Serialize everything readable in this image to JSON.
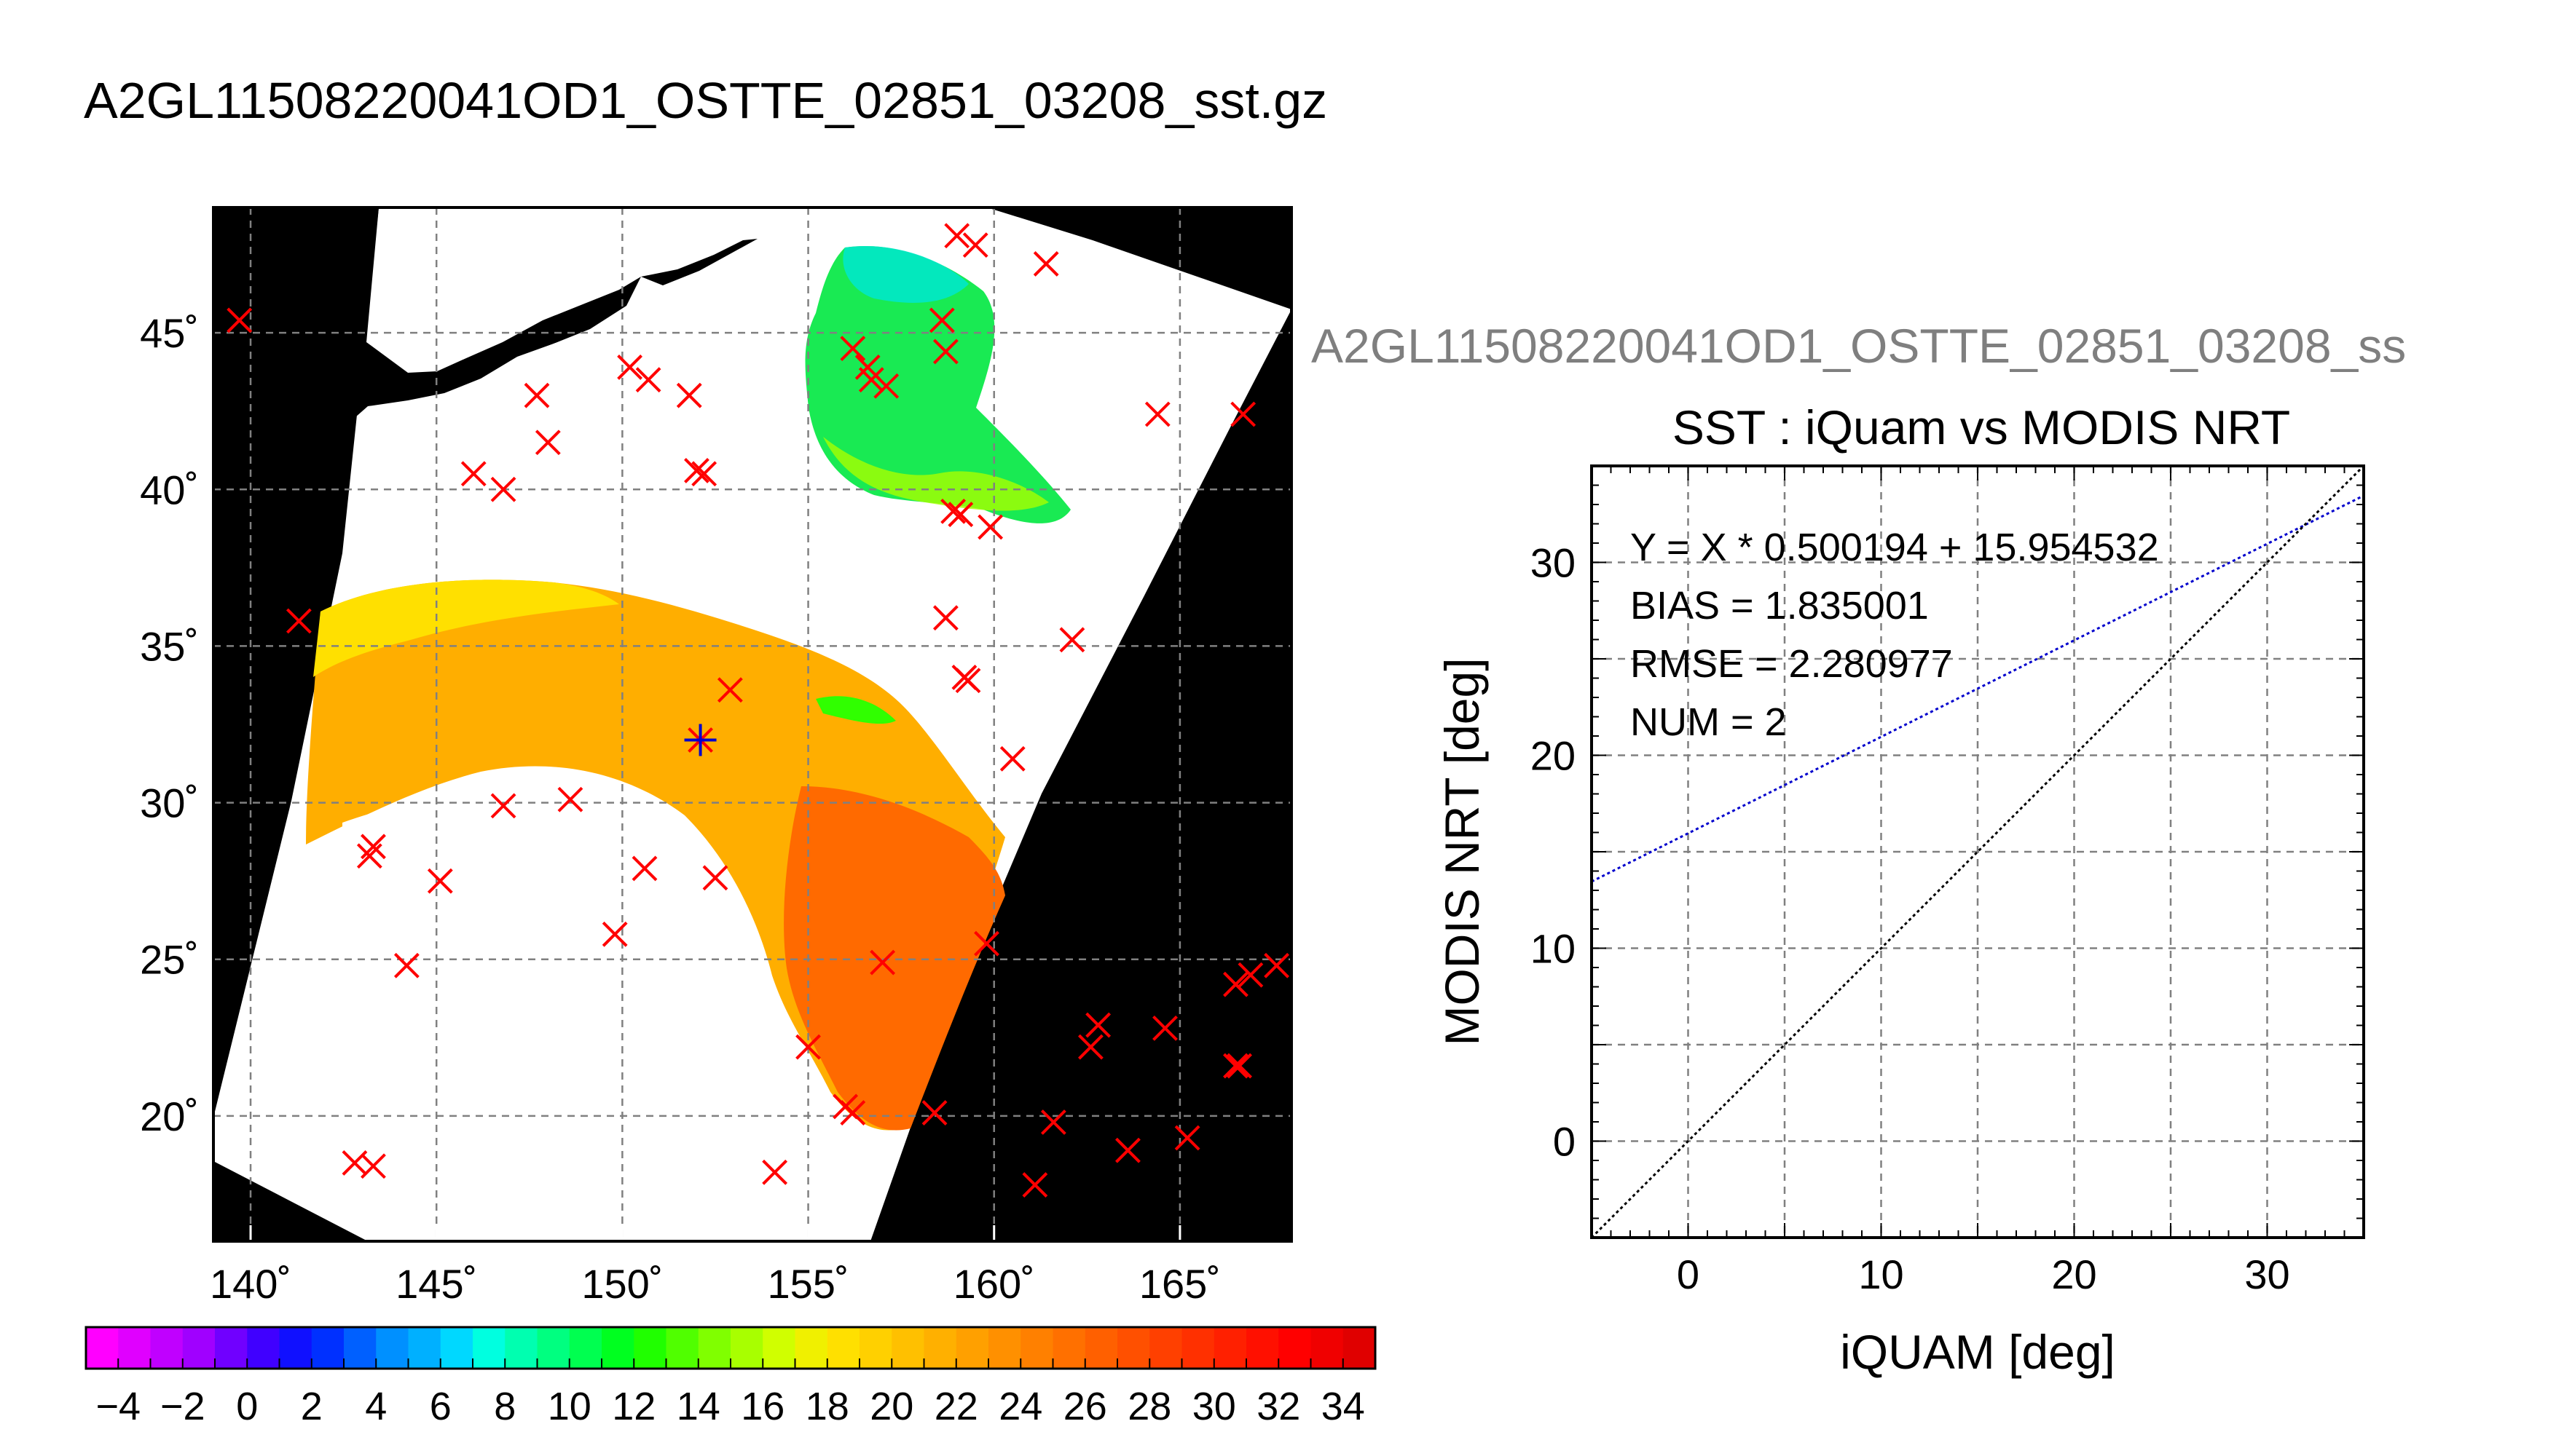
{
  "title": "A2GL11508220041OD1_OSTTE_02851_03208_sst.gz",
  "chart_data": [
    {
      "type": "map",
      "xlim": [
        139,
        168
      ],
      "ylim": [
        16,
        49
      ],
      "x_ticks": [
        140,
        145,
        150,
        155,
        160,
        165
      ],
      "y_ticks": [
        20,
        25,
        30,
        35,
        40,
        45
      ],
      "x_tick_labels": [
        "140˚",
        "145˚",
        "150˚",
        "155˚",
        "160˚",
        "165˚"
      ],
      "y_tick_labels": [
        "20˚",
        "25˚",
        "30˚",
        "35˚",
        "40˚",
        "45˚"
      ],
      "grid": true,
      "markers": [
        [
          139.7,
          45.4
        ],
        [
          141.3,
          35.8
        ],
        [
          142.8,
          18.5
        ],
        [
          143.3,
          18.4
        ],
        [
          143.2,
          28.3
        ],
        [
          143.3,
          28.6
        ],
        [
          144.2,
          24.8
        ],
        [
          145.1,
          27.5
        ],
        [
          146.0,
          40.5
        ],
        [
          146.8,
          40.0
        ],
        [
          146.8,
          29.9
        ],
        [
          147.7,
          43.0
        ],
        [
          148.0,
          41.5
        ],
        [
          148.6,
          30.1
        ],
        [
          149.8,
          25.8
        ],
        [
          150.2,
          43.9
        ],
        [
          150.6,
          27.9
        ],
        [
          150.7,
          43.5
        ],
        [
          152.0,
          40.6
        ],
        [
          152.2,
          40.5
        ],
        [
          151.8,
          43.0
        ],
        [
          152.5,
          27.6
        ],
        [
          152.9,
          33.6
        ],
        [
          155.0,
          22.2
        ],
        [
          154.1,
          18.2
        ],
        [
          156.0,
          20.3
        ],
        [
          156.2,
          20.1
        ],
        [
          157.0,
          24.9
        ],
        [
          156.2,
          44.5
        ],
        [
          156.6,
          43.9
        ],
        [
          156.7,
          43.5
        ],
        [
          157.1,
          43.3
        ],
        [
          158.4,
          20.1
        ],
        [
          158.6,
          45.4
        ],
        [
          158.7,
          44.4
        ],
        [
          158.7,
          35.9
        ],
        [
          158.9,
          39.3
        ],
        [
          159.1,
          39.2
        ],
        [
          159.2,
          34.0
        ],
        [
          159.3,
          33.9
        ],
        [
          159.8,
          25.5
        ],
        [
          159.9,
          38.8
        ],
        [
          160.5,
          31.4
        ],
        [
          159.0,
          48.1
        ],
        [
          159.5,
          47.8
        ],
        [
          161.4,
          47.2
        ],
        [
          162.1,
          35.2
        ],
        [
          161.1,
          17.8
        ],
        [
          161.6,
          19.8
        ],
        [
          162.6,
          22.2
        ],
        [
          162.8,
          22.9
        ],
        [
          163.6,
          18.9
        ],
        [
          164.4,
          42.4
        ],
        [
          164.6,
          22.8
        ],
        [
          165.2,
          19.3
        ],
        [
          166.5,
          24.2
        ],
        [
          166.9,
          24.5
        ],
        [
          166.7,
          42.4
        ],
        [
          166.5,
          21.6
        ],
        [
          166.6,
          21.6
        ],
        [
          167.6,
          24.8
        ]
      ],
      "highlight_marker": [
        152.1,
        32.0
      ]
    },
    {
      "type": "line",
      "title": "SST : iQuam vs MODIS NRT",
      "xlabel": "iQUAM [deg]",
      "ylabel": "MODIS NRT [deg]",
      "xlim": [
        -5,
        35
      ],
      "ylim": [
        -5,
        35
      ],
      "x_ticks": [
        0,
        10,
        20,
        30
      ],
      "y_ticks": [
        0,
        10,
        20,
        30
      ],
      "grid_step": 5,
      "grid": true,
      "series": [
        {
          "kind": "regression",
          "slope": 0.500194,
          "intercept": 15.954532,
          "x": [
            -5,
            35
          ],
          "color": "#0000cc"
        },
        {
          "kind": "identity",
          "slope": 1.0,
          "intercept": 0.0,
          "x": [
            -5,
            35
          ],
          "color": "#000000"
        }
      ],
      "stats": [
        "Y = X * 0.500194 + 15.954532",
        "BIAS = 1.835001",
        "RMSE = 2.280977",
        "NUM = 2"
      ],
      "overlay_title": "A2GL11508220041OD1_OSTTE_02851_03208_ss"
    }
  ],
  "colorbar": {
    "tick_values": [
      -4,
      -2,
      0,
      2,
      4,
      6,
      8,
      10,
      12,
      14,
      16,
      18,
      20,
      22,
      24,
      26,
      28,
      30,
      32,
      34
    ],
    "tick_labels": [
      "−4",
      "−2",
      "0",
      "2",
      "4",
      "6",
      "8",
      "10",
      "12",
      "14",
      "16",
      "18",
      "20",
      "22",
      "24",
      "26",
      "28",
      "30",
      "32",
      "34"
    ],
    "range": [
      -5,
      35
    ],
    "colors": [
      "#ff00ff",
      "#e000ff",
      "#c000ff",
      "#a000ff",
      "#7000ff",
      "#4000ff",
      "#1010ff",
      "#0030ff",
      "#0060ff",
      "#0090ff",
      "#00b0ff",
      "#00d8ff",
      "#00ffe0",
      "#00ffb0",
      "#00ff80",
      "#00ff50",
      "#00ff20",
      "#20ff00",
      "#50ff00",
      "#80ff00",
      "#a8ff00",
      "#d0ff00",
      "#f0f000",
      "#ffe000",
      "#ffd000",
      "#ffc000",
      "#ffb000",
      "#ffa000",
      "#ff9000",
      "#ff8000",
      "#ff7000",
      "#ff6000",
      "#ff5000",
      "#ff4000",
      "#ff3000",
      "#ff2000",
      "#ff1000",
      "#ff0000",
      "#f00000",
      "#e00000"
    ]
  }
}
